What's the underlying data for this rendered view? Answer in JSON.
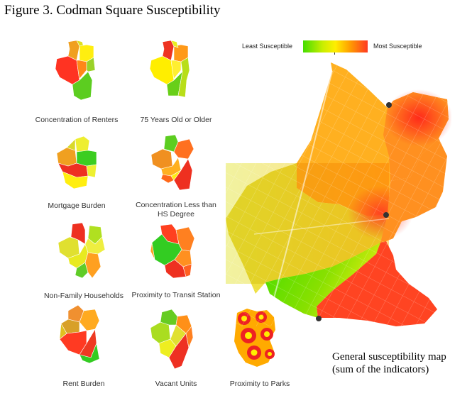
{
  "figure_title": "Figure 3. Codman Square Susceptibility",
  "legend": {
    "low_label": "Least Susceptible",
    "high_label": "Most Susceptible",
    "colors": [
      "#44dd00",
      "#c8ee00",
      "#ffee00",
      "#ffa000",
      "#ff3a22"
    ]
  },
  "indicators": [
    {
      "caption": "Concentration of Renters",
      "colors": [
        "#ff3322",
        "#f0a020",
        "#e0e020",
        "#ffee10",
        "#ff8818",
        "#9ad228",
        "#5ccd20"
      ]
    },
    {
      "caption": "75 Years Old or Older",
      "colors": [
        "#ffee00",
        "#ee3322",
        "#ff9918",
        "#e8ee20",
        "#ffef30",
        "#68cf18",
        "#b8de18"
      ]
    },
    {
      "caption": "Mortgage Burden",
      "colors": [
        "#f0a020",
        "#eeee30",
        "#d9d92a",
        "#ee3022",
        "#ffee10",
        "#3ccd20",
        "#eef030"
      ]
    },
    {
      "caption": "Concentration Less than HS Degree",
      "colors": [
        "#f09020",
        "#5ccd20",
        "#ff7020",
        "#ffb020",
        "#ee3020",
        "#ff6818",
        "#ffee10"
      ]
    },
    {
      "caption": "Non-Family Households",
      "colors": [
        "#e0e030",
        "#ee3020",
        "#b0e020",
        "#e8ea20",
        "#60cc28",
        "#ffa020",
        "#eeee40"
      ]
    },
    {
      "caption": "Proximity to Transit Station",
      "colors": [
        "#ff4020",
        "#ff8020",
        "#33cc22",
        "#ff9020",
        "#ee3020",
        "#ff6020",
        "#ffa020"
      ]
    },
    {
      "caption": "Rent Burden",
      "colors": [
        "#f09030",
        "#d8a028",
        "#ffaa20",
        "#ff3a22",
        "#ee3a22",
        "#33cc22",
        "#e0c020"
      ]
    },
    {
      "caption": "Vacant Units",
      "colors": [
        "#aadd20",
        "#66cc22",
        "#eeee20",
        "#ff9018",
        "#ee3022",
        "#ff8020",
        "#e0e030"
      ]
    },
    {
      "caption": "Proximity to Parks",
      "colors": [
        "#ee2222",
        "#ffaa00",
        "#ffee00"
      ]
    }
  ],
  "main_map": {
    "caption": "General susceptibility map (sum of the indicators)",
    "caption_line1": "General susceptibility map",
    "caption_line2": "(sum of the indicators)",
    "colors": {
      "north": "#ffb020",
      "northeast_hot": "#ff3a22",
      "center_west": "#eee040",
      "south_green": "#44dd00",
      "south_red": "#ff4422",
      "east": "#ff9020"
    }
  }
}
